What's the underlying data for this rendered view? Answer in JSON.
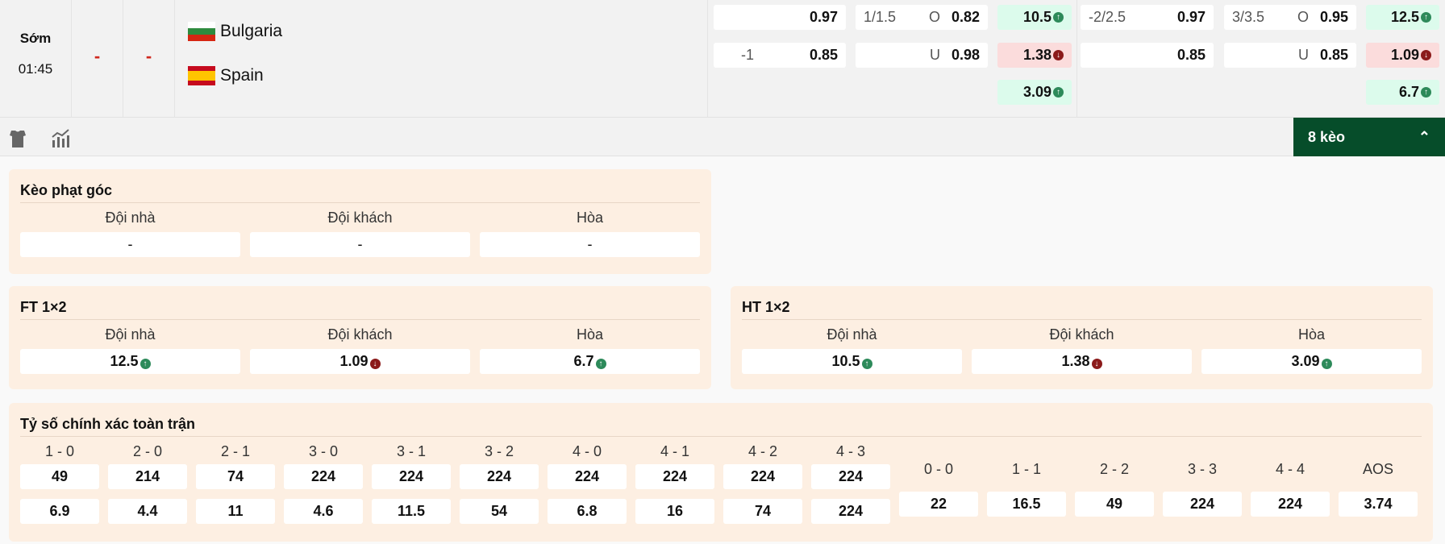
{
  "match": {
    "status": "Sớm",
    "time": "01:45",
    "score_home": "-",
    "score_away": "-",
    "home": "Bulgaria",
    "away": "Spain"
  },
  "odds": {
    "ft_hdp": {
      "row1": {
        "line": "",
        "value": "0.97"
      },
      "row2": {
        "line": "-1",
        "value": "0.85"
      }
    },
    "ft_ou": {
      "row1": {
        "line": "1/1.5",
        "side": "O",
        "value": "0.82"
      },
      "row2": {
        "line": "",
        "side": "U",
        "value": "0.98"
      }
    },
    "ht_1x2": [
      "10.5",
      "1.38",
      "3.09"
    ],
    "ht_hdp": {
      "row1": {
        "line": "-2/2.5",
        "value": "0.97"
      },
      "row2": {
        "line": "",
        "value": "0.85"
      }
    },
    "ht_ou": {
      "row1": {
        "line": "3/3.5",
        "side": "O",
        "value": "0.95"
      },
      "row2": {
        "line": "",
        "side": "U",
        "value": "0.85"
      }
    },
    "ft_1x2": [
      "12.5",
      "1.09",
      "6.7"
    ]
  },
  "toolbar": {
    "shirt_icon": "shirt-icon",
    "stats_icon": "stats-icon",
    "more_label": "8 kèo",
    "more_icon": "chevron-up-icon"
  },
  "colors": {
    "up": "#dcfbec",
    "down": "#fbdcdc",
    "accent": "#064d2a"
  },
  "headers": {
    "home": "Đội nhà",
    "away": "Đội khách",
    "draw": "Hòa"
  },
  "corner": {
    "title": "Kèo phạt góc",
    "values": [
      "-",
      "-",
      "-"
    ]
  },
  "ft": {
    "title": "FT 1×2",
    "values": [
      "12.5",
      "1.09",
      "6.7"
    ]
  },
  "ht": {
    "title": "HT 1×2",
    "values": [
      "10.5",
      "1.38",
      "3.09"
    ]
  },
  "correct_score": {
    "title": "Tỷ số chính xác toàn trận",
    "scores": [
      "1 - 0",
      "2 - 0",
      "2 - 1",
      "3 - 0",
      "3 - 1",
      "3 - 2",
      "4 - 0",
      "4 - 1",
      "4 - 2",
      "4 - 3"
    ],
    "home": [
      "49",
      "214",
      "74",
      "224",
      "224",
      "224",
      "224",
      "224",
      "224",
      "224"
    ],
    "away": [
      "6.9",
      "4.4",
      "11",
      "4.6",
      "11.5",
      "54",
      "6.8",
      "16",
      "74",
      "224"
    ],
    "draws": [
      "0 - 0",
      "1 - 1",
      "2 - 2",
      "3 - 3",
      "4 - 4",
      "AOS"
    ],
    "draw_values": [
      "22",
      "16.5",
      "49",
      "224",
      "224",
      "3.74"
    ]
  }
}
